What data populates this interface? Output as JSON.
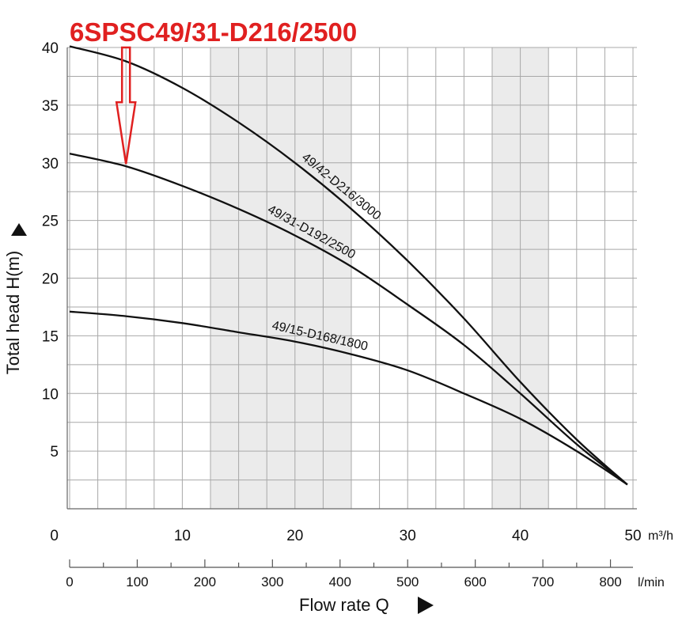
{
  "title": "6SPSC49/31-D216/2500",
  "colors": {
    "title": "#e02020",
    "arrow": "#e02020",
    "curve": "#111111",
    "grid": "#a8a8a8",
    "shade": "#ebebeb",
    "text": "#111111"
  },
  "chart_data": {
    "type": "line",
    "title": "6SPSC49/31-D216/2500",
    "xlabel": "Flow rate Q",
    "ylabel": "Total head H(m)",
    "x_unit": "m³/h",
    "x2_unit": "l/min",
    "xlim": [
      0,
      50
    ],
    "ylim": [
      0,
      40
    ],
    "x2lim": [
      0,
      833.3
    ],
    "x_ticks": [
      "0",
      "10",
      "20",
      "30",
      "40",
      "50"
    ],
    "y_ticks": [
      "5",
      "10",
      "15",
      "20",
      "25",
      "30",
      "35",
      "40"
    ],
    "y_zero_label": "0",
    "x2_ticks": [
      "0",
      "100",
      "200",
      "300",
      "400",
      "500",
      "600",
      "700",
      "800"
    ],
    "grid": true,
    "shaded_x_ranges": [
      [
        12.5,
        25
      ],
      [
        37.5,
        42.5
      ]
    ],
    "series": [
      {
        "name": "49/42-D216/3000",
        "x": [
          0,
          5,
          10,
          15,
          20,
          25,
          30,
          35,
          40,
          45,
          49.5
        ],
        "y": [
          40.1,
          38.8,
          36.5,
          33.5,
          30,
          26,
          21.5,
          16.5,
          11,
          6,
          2.1
        ]
      },
      {
        "name": "49/31-D192/2500",
        "x": [
          0,
          5,
          10,
          15,
          20,
          25,
          30,
          35,
          40,
          45,
          49.5
        ],
        "y": [
          30.8,
          29.7,
          28,
          26,
          23.7,
          21,
          17.7,
          14.2,
          10,
          5.6,
          2.1
        ]
      },
      {
        "name": "49/15-D168/1800",
        "x": [
          0,
          5,
          10,
          15,
          20,
          25,
          30,
          35,
          40,
          45,
          49.5
        ],
        "y": [
          17.1,
          16.7,
          16.1,
          15.3,
          14.5,
          13.4,
          12,
          10,
          7.8,
          5,
          2.1
        ]
      }
    ],
    "annotations": [
      {
        "text": "6SPSC49/31-D216/2500",
        "kind": "arrow",
        "x": 5,
        "y_from": 40,
        "y_to": 29.9
      }
    ]
  }
}
